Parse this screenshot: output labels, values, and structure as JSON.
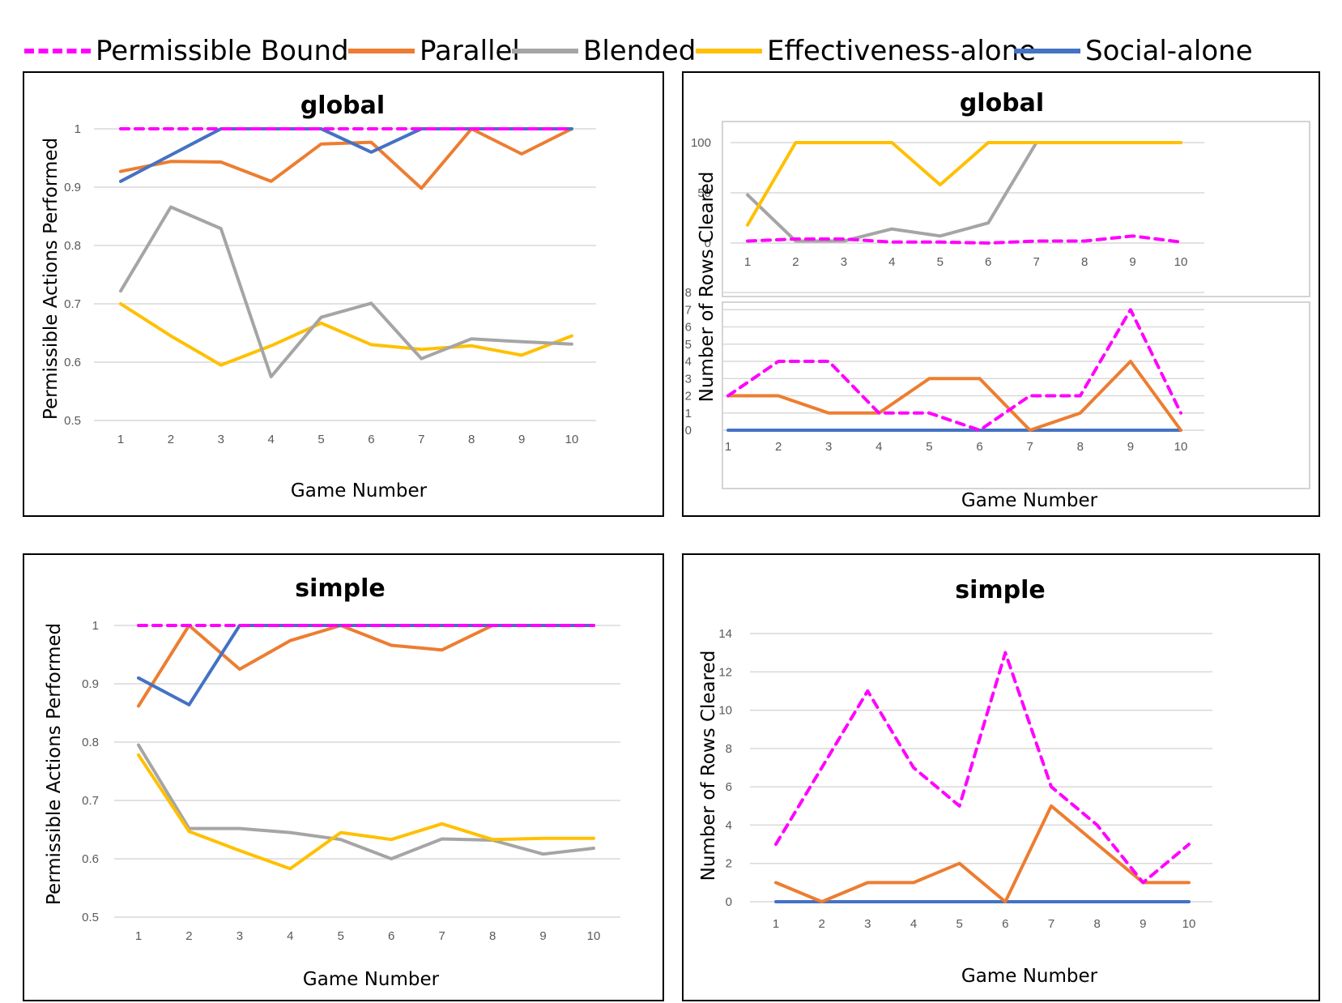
{
  "colors": {
    "permissible": "#ff00ff",
    "parallel": "#ed7d31",
    "blended": "#a5a5a5",
    "effectiveness": "#ffc000",
    "social": "#4472c4"
  },
  "legend": [
    {
      "label": "Permissible Bound",
      "color": "#ff00ff",
      "dashed": true
    },
    {
      "label": "Parallel",
      "color": "#ed7d31",
      "dashed": false
    },
    {
      "label": "Blended",
      "color": "#a5a5a5",
      "dashed": false
    },
    {
      "label": "Effectiveness-alone",
      "color": "#ffc000",
      "dashed": false
    },
    {
      "label": "Social-alone",
      "color": "#4472c4",
      "dashed": false
    }
  ],
  "chart_data": [
    {
      "type": "line",
      "title": "global",
      "xlabel": "Game Number",
      "ylabel": "Permissible Actions Performed",
      "x": [
        1,
        2,
        3,
        4,
        5,
        6,
        7,
        8,
        9,
        10
      ],
      "ylim": [
        0.5,
        1
      ],
      "yticks": [
        "0.5",
        "0.6",
        "0.7",
        "0.8",
        "0.9",
        "1"
      ],
      "grid": true,
      "series": [
        {
          "name": "Effectiveness-alone",
          "values": [
            0.7,
            0.645,
            0.595,
            0.628,
            0.667,
            0.63,
            0.622,
            0.628,
            0.612,
            0.645
          ]
        },
        {
          "name": "Blended",
          "values": [
            0.722,
            0.866,
            0.829,
            0.575,
            0.677,
            0.701,
            0.606,
            0.64,
            0.635,
            0.631
          ]
        },
        {
          "name": "Parallel",
          "values": [
            0.927,
            0.944,
            0.943,
            0.91,
            0.974,
            0.977,
            0.898,
            1.0,
            0.957,
            1.0
          ]
        },
        {
          "name": "Social-alone",
          "values": [
            0.91,
            0.955,
            1.0,
            1.0,
            1.0,
            0.96,
            1.0,
            1.0,
            1.0,
            1.0
          ]
        },
        {
          "name": "Permissible Bound",
          "values": [
            1,
            1,
            1,
            1,
            1,
            1,
            1,
            1,
            1,
            1
          ]
        }
      ]
    },
    {
      "type": "line",
      "title": "global",
      "xlabel": "Game Number",
      "ylabel": "Number of Rows Cleared",
      "x": [
        1,
        2,
        3,
        4,
        5,
        6,
        7,
        8,
        9,
        10
      ],
      "grid": true,
      "panels": [
        {
          "ylim": [
            0,
            100
          ],
          "yticks": [
            "0",
            "50",
            "100"
          ],
          "series": [
            {
              "name": "Blended",
              "values": [
                48,
                2,
                2,
                14,
                7,
                20,
                100,
                100,
                100,
                100
              ]
            },
            {
              "name": "Effectiveness-alone",
              "values": [
                18,
                100,
                100,
                100,
                58,
                100,
                100,
                100,
                100,
                100
              ]
            },
            {
              "name": "Permissible Bound",
              "values": [
                2,
                4,
                4,
                1,
                1,
                0,
                2,
                2,
                7,
                1
              ]
            }
          ]
        },
        {
          "ylim": [
            0,
            8
          ],
          "yticks": [
            "0",
            "1",
            "2",
            "3",
            "4",
            "5",
            "6",
            "7",
            "8"
          ],
          "series": [
            {
              "name": "Social-alone",
              "values": [
                0,
                0,
                0,
                0,
                0,
                0,
                0,
                0,
                0,
                0
              ]
            },
            {
              "name": "Parallel",
              "values": [
                2,
                2,
                1,
                1,
                3,
                3,
                0,
                1,
                4,
                0
              ]
            },
            {
              "name": "Permissible Bound",
              "values": [
                2,
                4,
                4,
                1,
                1,
                0,
                2,
                2,
                7,
                1
              ]
            }
          ]
        }
      ]
    },
    {
      "type": "line",
      "title": "simple",
      "xlabel": "Game Number",
      "ylabel": "Permissible Actions Performed",
      "x": [
        1,
        2,
        3,
        4,
        5,
        6,
        7,
        8,
        9,
        10
      ],
      "ylim": [
        0.5,
        1
      ],
      "yticks": [
        "0.5",
        "0.6",
        "0.7",
        "0.8",
        "0.9",
        "1"
      ],
      "grid": true,
      "series": [
        {
          "name": "Blended",
          "values": [
            0.795,
            0.652,
            0.652,
            0.645,
            0.633,
            0.6,
            0.634,
            0.632,
            0.608,
            0.618
          ]
        },
        {
          "name": "Effectiveness-alone",
          "values": [
            0.778,
            0.647,
            0.614,
            0.583,
            0.645,
            0.633,
            0.66,
            0.633,
            0.635,
            0.635
          ]
        },
        {
          "name": "Parallel",
          "values": [
            0.862,
            1.0,
            0.925,
            0.974,
            1.0,
            0.966,
            0.958,
            1.0,
            1.0,
            1.0
          ]
        },
        {
          "name": "Social-alone",
          "values": [
            0.91,
            0.864,
            1.0,
            1.0,
            1.0,
            1.0,
            1.0,
            1.0,
            1.0,
            1.0
          ]
        },
        {
          "name": "Permissible Bound",
          "values": [
            1,
            1,
            1,
            1,
            1,
            1,
            1,
            1,
            1,
            1
          ]
        }
      ]
    },
    {
      "type": "line",
      "title": "simple",
      "xlabel": "Game Number",
      "ylabel": "Number of Rows Cleared",
      "x": [
        1,
        2,
        3,
        4,
        5,
        6,
        7,
        8,
        9,
        10
      ],
      "ylim": [
        0,
        14
      ],
      "yticks": [
        "0",
        "2",
        "4",
        "6",
        "8",
        "10",
        "12",
        "14"
      ],
      "grid": true,
      "series": [
        {
          "name": "Social-alone",
          "values": [
            0,
            0,
            0,
            0,
            0,
            0,
            0,
            0,
            0,
            0
          ]
        },
        {
          "name": "Parallel",
          "values": [
            1,
            0,
            1,
            1,
            2,
            0,
            5,
            3,
            1,
            1
          ]
        },
        {
          "name": "Permissible Bound",
          "values": [
            3,
            7,
            11,
            7,
            5,
            13,
            6,
            4,
            1,
            3
          ]
        }
      ]
    }
  ]
}
